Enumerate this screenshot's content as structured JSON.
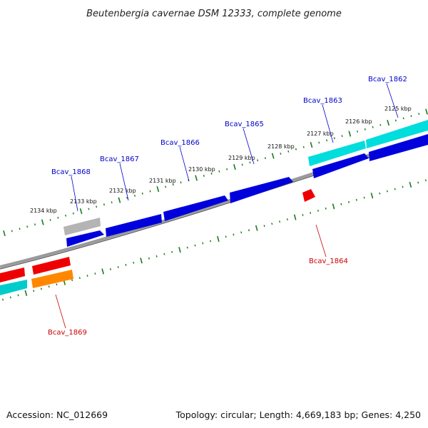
{
  "title": "Beutenbergia cavernae DSM 12333, complete genome",
  "footer": {
    "accession": "Accession: NC_012669",
    "stats": "Topology: circular; Length: 4,669,183 bp; Genes: 4,250"
  },
  "colors": {
    "backbone": "#808080",
    "tick": "#1a7a1a",
    "forward_gene": "#0000dd",
    "forward_gene_label": "#0000cc",
    "reverse_gene_label": "#cc0000",
    "red": "#ee0000",
    "cyan": "#00dddd",
    "orange": "#ff8800",
    "grey_gene": "#b0b0b0"
  },
  "scale_labels": [
    "2134 kbp",
    "2133 kbp",
    "2132 kbp",
    "2131 kbp",
    "2130 kbp",
    "2129 kbp",
    "2128 kbp",
    "2127 kbp",
    "2126 kbp",
    "2125 kbp"
  ],
  "forward_genes": [
    {
      "name": "Bcav_1868",
      "color": "grey"
    },
    {
      "name": "Bcav_1867",
      "color": "blue"
    },
    {
      "name": "Bcav_1866",
      "color": "blue"
    },
    {
      "name": "Bcav_1865",
      "color": "blue"
    },
    {
      "name": "Bcav_1863",
      "color": "blue"
    },
    {
      "name": "Bcav_1862",
      "color": "blue"
    }
  ],
  "reverse_genes": [
    {
      "name": "Bcav_1869",
      "color": "red"
    },
    {
      "name": "Bcav_1864",
      "color": "red"
    }
  ]
}
